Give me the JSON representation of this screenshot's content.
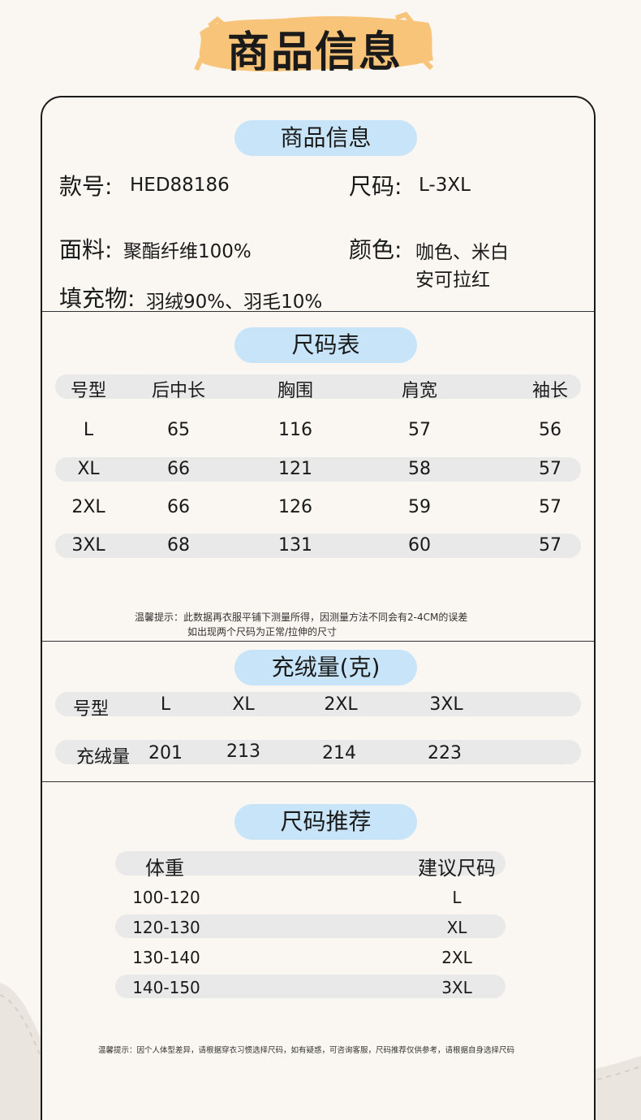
{
  "banner": {
    "title": "商品信息",
    "brush_color": "#f7c479"
  },
  "info": {
    "heading": "商品信息",
    "style_label": "款号:",
    "style_value": "HED88186",
    "size_label": "尺码:",
    "size_value": "L-3XL",
    "fabric_label": "面料:",
    "fabric_value": "聚酯纤维100%",
    "color_label": "颜色:",
    "color_value_1": "咖色、米白",
    "color_value_2": "安可拉红",
    "filling_label": "填充物:",
    "filling_value": "羽绒90%、羽毛10%"
  },
  "size_chart": {
    "heading": "尺码表",
    "headers": [
      "号型",
      "后中长",
      "胸围",
      "肩宽",
      "袖长"
    ],
    "rows": [
      [
        "L",
        "65",
        "116",
        "57",
        "56"
      ],
      [
        "XL",
        "66",
        "121",
        "58",
        "57"
      ],
      [
        "2XL",
        "66",
        "126",
        "59",
        "57"
      ],
      [
        "3XL",
        "68",
        "131",
        "60",
        "57"
      ]
    ],
    "note_1": "温馨提示：此数据再衣服平铺下测量所得，因测量方法不同会有2-4CM的误差",
    "note_2": "如出现两个尺码为正常/拉伸的尺寸"
  },
  "down": {
    "heading": "充绒量(克)",
    "row1": [
      "号型",
      "L",
      "XL",
      "2XL",
      "3XL"
    ],
    "row2": [
      "充绒量",
      "201",
      "213",
      "214",
      "223"
    ]
  },
  "recommend": {
    "heading": "尺码推荐",
    "headers": [
      "体重",
      "建议尺码"
    ],
    "rows": [
      [
        "100-120",
        "L"
      ],
      [
        "120-130",
        "XL"
      ],
      [
        "130-140",
        "2XL"
      ],
      [
        "140-150",
        "3XL"
      ]
    ],
    "note": "温馨提示：因个人体型差异，请根据穿衣习惯选择尺码，如有疑惑，可咨询客服，尺码推荐仅供参考，请根据自身选择尺码"
  },
  "colors": {
    "pill": "#c8e4f8",
    "band": "#e9e9e9",
    "background": "#faf6f1"
  }
}
